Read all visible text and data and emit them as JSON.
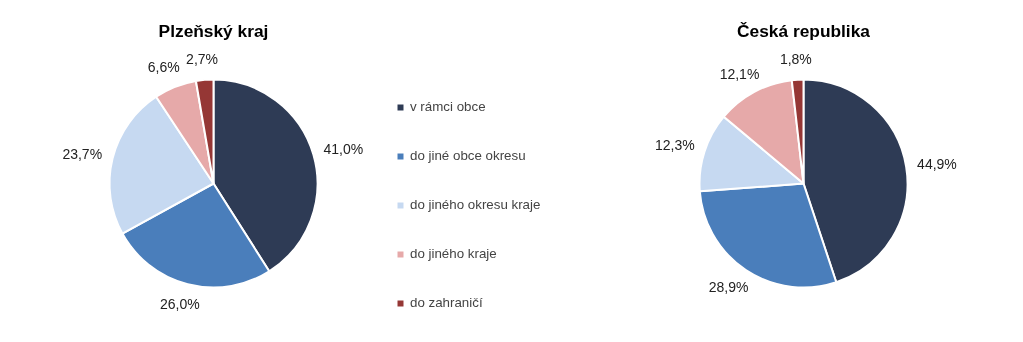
{
  "chart_data": [
    {
      "type": "pie",
      "title": "Plzeňský kraj",
      "categories": [
        "v rámci obce",
        "do jiné obce okresu",
        "do jiného okresu kraje",
        "do jiného kraje",
        "do zahraničí"
      ],
      "values": [
        41.0,
        26.0,
        23.7,
        6.6,
        2.7
      ],
      "value_labels": [
        "41,0%",
        "26,0%",
        "23,7%",
        "6,6%",
        "2,7%"
      ],
      "colors": [
        "#2e3b55",
        "#4a7ebb",
        "#c6d9f1",
        "#e6a9a9",
        "#953735"
      ],
      "legend": "right"
    },
    {
      "type": "pie",
      "title": "Česká republika",
      "categories": [
        null,
        null,
        null,
        null,
        null
      ],
      "values": [
        44.9,
        28.9,
        12.3,
        12.1,
        1.8
      ],
      "value_labels": [
        "44,9%",
        "28,9%",
        "12,3%",
        "12,1%",
        "1,8%"
      ],
      "colors": [
        "#2e3b55",
        "#4a7ebb",
        "#c6d9f1",
        "#e6a9a9",
        "#953735"
      ]
    }
  ]
}
